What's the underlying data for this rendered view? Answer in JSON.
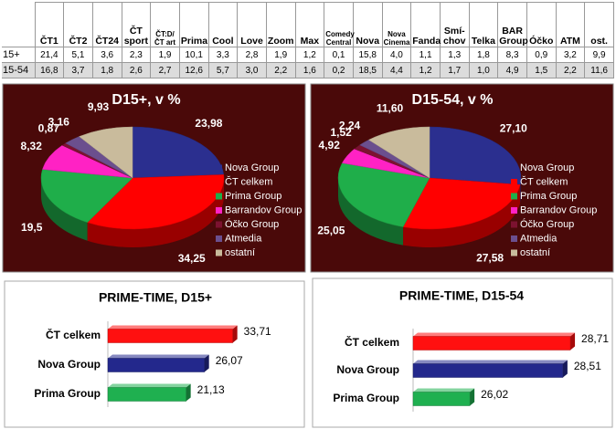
{
  "table": {
    "columns": [
      "ČT1",
      "ČT2",
      "ČT24",
      "ČT sport",
      "ČT:D/ ČT art",
      "Prima",
      "Cool",
      "Love",
      "Zoom",
      "Max",
      "Comedy Central",
      "Nova",
      "Nova Cinema",
      "Fanda",
      "Smí-chov",
      "Telka",
      "BAR Group",
      "Óčko",
      "ATM",
      "ost."
    ],
    "rows": [
      {
        "label": "15+",
        "cells": [
          "21,4",
          "5,1",
          "3,6",
          "2,3",
          "1,9",
          "10,1",
          "3,3",
          "2,8",
          "1,9",
          "1,2",
          "0,1",
          "15,8",
          "4,0",
          "1,1",
          "1,3",
          "1,8",
          "8,3",
          "0,9",
          "3,2",
          "9,9"
        ]
      },
      {
        "label": "15-54",
        "cells": [
          "16,8",
          "3,7",
          "1,8",
          "2,6",
          "2,7",
          "12,6",
          "5,7",
          "3,0",
          "2,2",
          "1,6",
          "0,2",
          "18,5",
          "4,4",
          "1,2",
          "1,7",
          "1,0",
          "4,9",
          "1,5",
          "2,2",
          "11,6"
        ]
      }
    ]
  },
  "chart_data": [
    {
      "type": "pie",
      "title": "D15+, v %",
      "categories": [
        "Nova Group",
        "ČT celkem",
        "Prima Group",
        "Barrandov Group",
        "Óčko Group",
        "Atmedia",
        "ostatní"
      ],
      "values": [
        23.98,
        34.25,
        19.5,
        8.32,
        0.87,
        3.16,
        9.93
      ],
      "value_labels": [
        "23,98",
        "34,25",
        "19,5",
        "8,32",
        "0,87",
        "3,16",
        "9,93"
      ],
      "colors": [
        "#2b2f8f",
        "#ff0000",
        "#1fae4a",
        "#ff22c4",
        "#7c1230",
        "#6b4f8e",
        "#c9bb9c"
      ]
    },
    {
      "type": "pie",
      "title": "D15-54, v %",
      "categories": [
        "Nova Group",
        "ČT celkem",
        "Prima Group",
        "Barrandov Group",
        "Óčko Group",
        "Atmedia",
        "ostatní"
      ],
      "values": [
        27.1,
        27.58,
        25.05,
        4.92,
        1.52,
        2.24,
        11.6
      ],
      "value_labels": [
        "27,10",
        "27,58",
        "25,05",
        "4,92",
        "1,52",
        "2,24",
        "11,60"
      ],
      "colors": [
        "#2b2f8f",
        "#ff0000",
        "#1fae4a",
        "#ff22c4",
        "#7c1230",
        "#6b4f8e",
        "#c9bb9c"
      ]
    },
    {
      "type": "bar",
      "title": "PRIME-TIME, D15+",
      "categories": [
        "ČT celkem",
        "Nova Group",
        "Prima Group"
      ],
      "values": [
        33.71,
        26.07,
        21.13
      ],
      "value_labels": [
        "33,71",
        "26,07",
        "21,13"
      ],
      "colors": [
        "#ff1010",
        "#23288c",
        "#1fb050"
      ],
      "xlim": [
        0,
        37
      ]
    },
    {
      "type": "bar",
      "title": "PRIME-TIME, D15-54",
      "categories": [
        "ČT celkem",
        "Nova Group",
        "Prima Group"
      ],
      "values": [
        28.71,
        28.51,
        26.02
      ],
      "value_labels": [
        "28,71",
        "28,51",
        "26,02"
      ],
      "colors": [
        "#ff1010",
        "#23288c",
        "#1fb050"
      ],
      "xlim": [
        24.5,
        29.1
      ]
    }
  ]
}
